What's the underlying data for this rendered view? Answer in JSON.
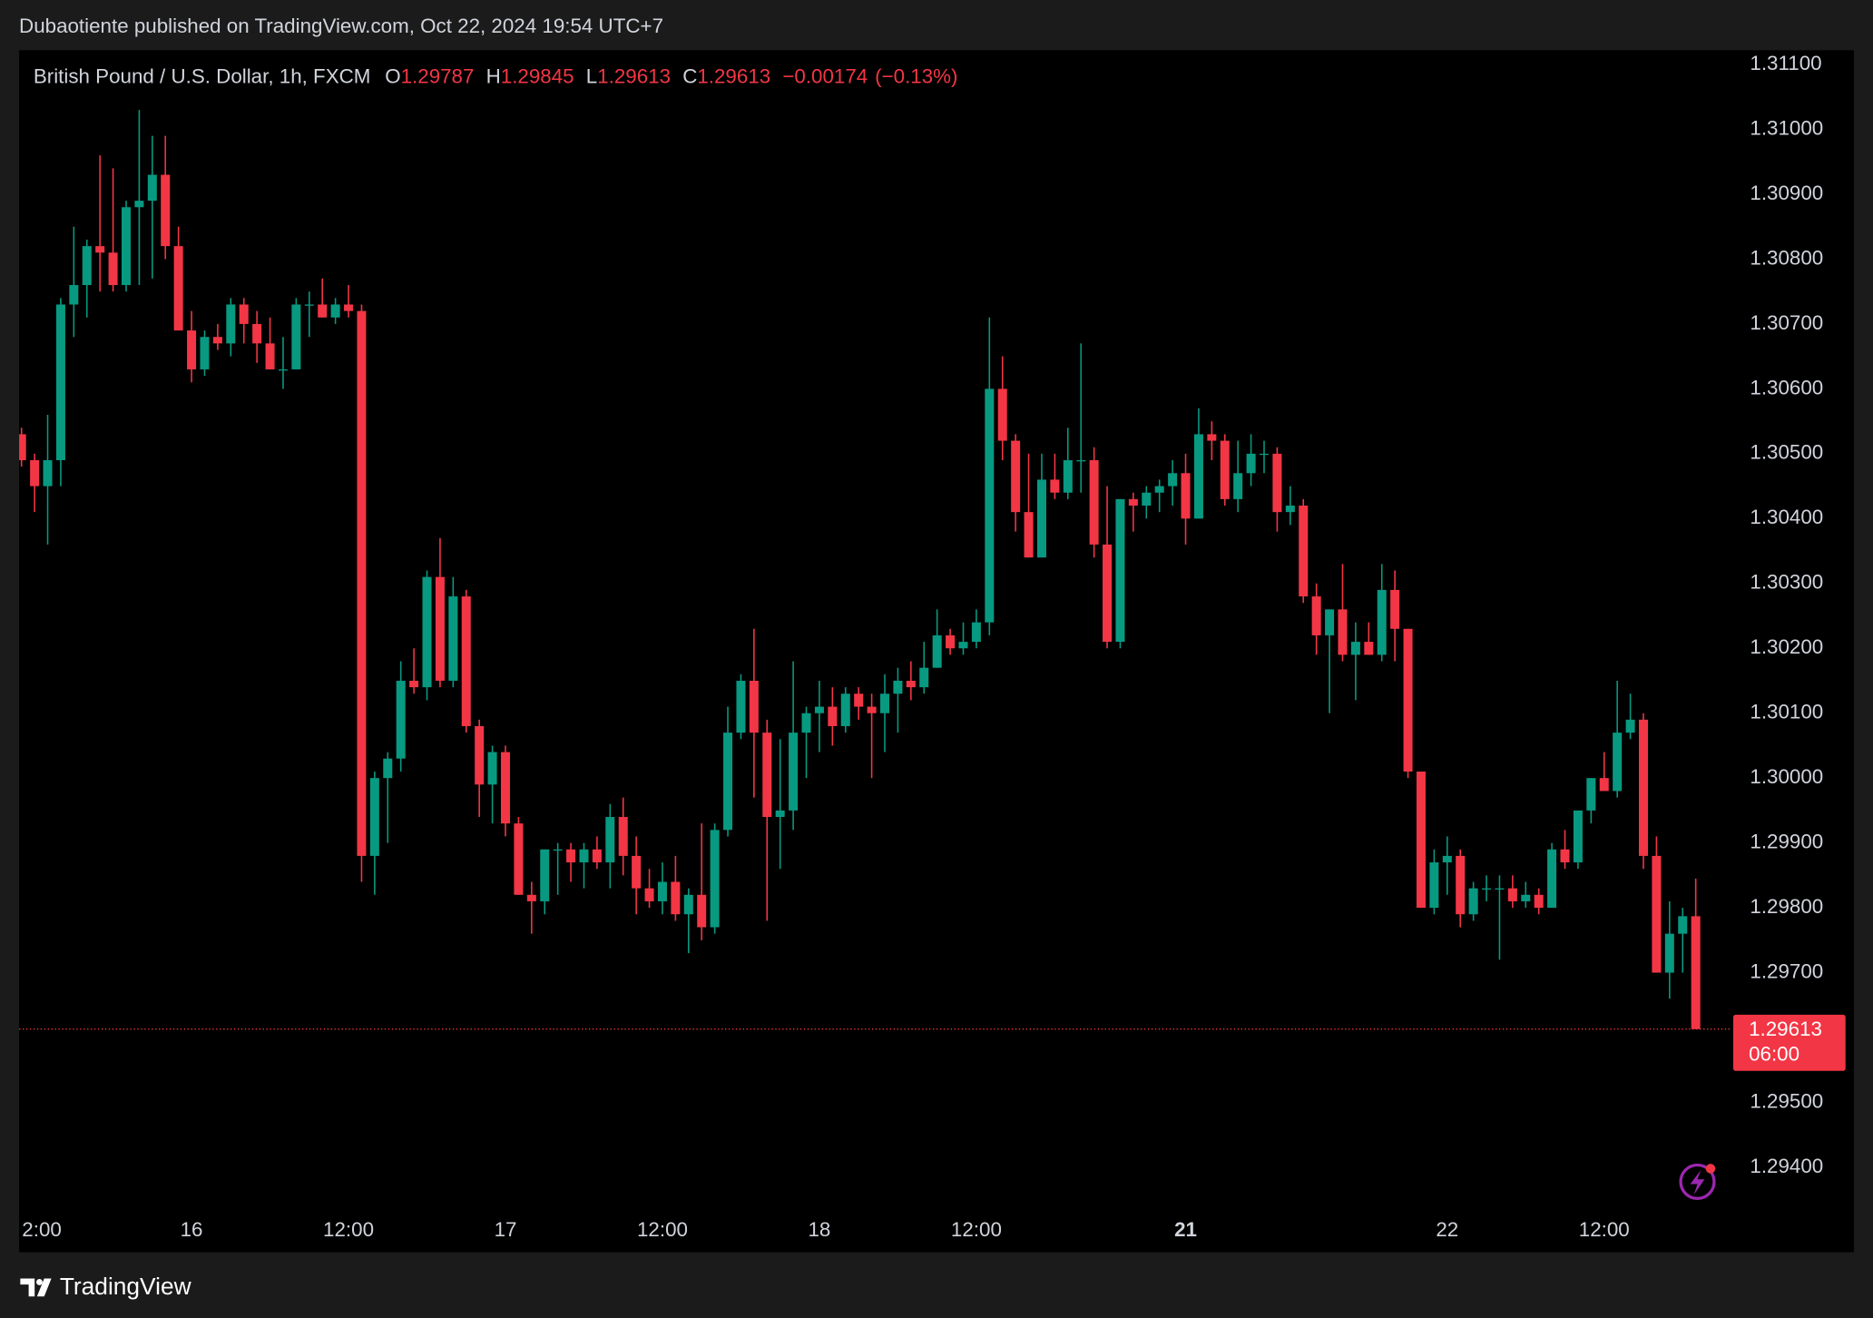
{
  "published": "Dubaotiente published on TradingView.com, Oct 22, 2024 19:54 UTC+7",
  "footer": {
    "brand": "TradingView"
  },
  "chart_data": {
    "type": "candlestick",
    "title": "British Pound / U.S. Dollar, 1h, FXCM",
    "ohlc_labels": [
      "O",
      "H",
      "L",
      "C"
    ],
    "change": {
      "value": -0.00174,
      "label": "−0.00174"
    },
    "change_percent": {
      "value": -0.13,
      "label": "(−0.13%)"
    },
    "countdown": "06:00",
    "up_color": "#089981",
    "down_color": "#f23645",
    "grid": false,
    "ylim": [
      1.29269,
      1.31122
    ],
    "yticks": [
      {
        "value": 1.311,
        "label": "1.31100"
      },
      {
        "value": 1.31,
        "label": "1.31000"
      },
      {
        "value": 1.309,
        "label": "1.30900"
      },
      {
        "value": 1.308,
        "label": "1.30800"
      },
      {
        "value": 1.307,
        "label": "1.30700"
      },
      {
        "value": 1.306,
        "label": "1.30600"
      },
      {
        "value": 1.305,
        "label": "1.30500"
      },
      {
        "value": 1.304,
        "label": "1.30400"
      },
      {
        "value": 1.303,
        "label": "1.30300"
      },
      {
        "value": 1.302,
        "label": "1.30200"
      },
      {
        "value": 1.301,
        "label": "1.30100"
      },
      {
        "value": 1.3,
        "label": "1.30000"
      },
      {
        "value": 1.299,
        "label": "1.29900"
      },
      {
        "value": 1.298,
        "label": "1.29800"
      },
      {
        "value": 1.297,
        "label": "1.29700"
      },
      {
        "value": 1.295,
        "label": "1.29500"
      },
      {
        "value": 1.294,
        "label": "1.29400"
      }
    ],
    "xticks": [
      {
        "value": 1,
        "label": "2:00"
      },
      {
        "value": 13,
        "label": "16"
      },
      {
        "value": 25,
        "label": "12:00"
      },
      {
        "value": 37,
        "label": "17"
      },
      {
        "value": 49,
        "label": "12:00"
      },
      {
        "value": 61,
        "label": "18"
      },
      {
        "value": 73,
        "label": "12:00"
      },
      {
        "value": 89,
        "label": "21",
        "bold": true
      },
      {
        "value": 109,
        "label": "22"
      },
      {
        "value": 121,
        "label": "12:00"
      }
    ],
    "open": [
      1.3053,
      1.3049,
      1.3045,
      1.3049,
      1.3073,
      1.3076,
      1.3082,
      1.3081,
      1.3076,
      1.3088,
      1.3089,
      1.3093,
      1.3082,
      1.3069,
      1.3063,
      1.3068,
      1.3067,
      1.3073,
      1.307,
      1.3067,
      1.3063,
      1.3063,
      1.3073,
      1.3073,
      1.3071,
      1.3073,
      1.3072,
      1.2988,
      1.3,
      1.3003,
      1.3015,
      1.3014,
      1.3031,
      1.3015,
      1.3028,
      1.3008,
      1.2999,
      1.3004,
      1.2993,
      1.2982,
      1.2981,
      1.2989,
      1.2989,
      1.2987,
      1.2989,
      1.2987,
      1.2994,
      1.2988,
      1.2983,
      1.2981,
      1.2984,
      1.2979,
      1.2982,
      1.2977,
      1.2992,
      1.3007,
      1.3015,
      1.3007,
      1.2994,
      1.2995,
      1.3007,
      1.301,
      1.3011,
      1.3008,
      1.3013,
      1.3011,
      1.301,
      1.3013,
      1.3015,
      1.3014,
      1.3017,
      1.3022,
      1.302,
      1.3021,
      1.3024,
      1.306,
      1.3052,
      1.3041,
      1.3034,
      1.3046,
      1.3044,
      1.3049,
      1.3049,
      1.3036,
      1.3021,
      1.3043,
      1.3042,
      1.3044,
      1.3045,
      1.3047,
      1.304,
      1.3053,
      1.3052,
      1.3043,
      1.3047,
      1.305,
      1.305,
      1.3041,
      1.3042,
      1.3028,
      1.3022,
      1.3026,
      1.3019,
      1.3021,
      1.3019,
      1.3029,
      1.3023,
      1.3001,
      1.298,
      1.2987,
      1.2988,
      1.2979,
      1.2983,
      1.2983,
      1.2983,
      1.2981,
      1.2982,
      1.298,
      1.2989,
      1.2987,
      1.2995,
      1.3,
      1.2998,
      1.3007,
      1.3009,
      1.2988,
      1.297,
      1.2976,
      1.29787
    ],
    "high": [
      1.3054,
      1.305,
      1.3056,
      1.3074,
      1.3085,
      1.3083,
      1.3096,
      1.3094,
      1.3089,
      1.3103,
      1.3099,
      1.3099,
      1.3085,
      1.3072,
      1.3069,
      1.307,
      1.3074,
      1.3074,
      1.3072,
      1.3071,
      1.3068,
      1.3074,
      1.3075,
      1.3077,
      1.3074,
      1.3076,
      1.3073,
      1.3001,
      1.3004,
      1.3018,
      1.302,
      1.3032,
      1.3037,
      1.3031,
      1.3029,
      1.3009,
      1.3005,
      1.3005,
      1.2994,
      1.2984,
      1.2989,
      1.299,
      1.299,
      1.299,
      1.2991,
      1.2996,
      1.2997,
      1.2991,
      1.2986,
      1.2987,
      1.2988,
      1.2983,
      1.2993,
      1.2993,
      1.3011,
      1.3016,
      1.3023,
      1.3009,
      1.3006,
      1.3018,
      1.3011,
      1.3015,
      1.3014,
      1.3014,
      1.3014,
      1.3013,
      1.3016,
      1.3017,
      1.3018,
      1.3021,
      1.3026,
      1.3023,
      1.3024,
      1.3026,
      1.3071,
      1.3065,
      1.3053,
      1.305,
      1.305,
      1.305,
      1.3054,
      1.3067,
      1.3051,
      1.3045,
      1.3043,
      1.3044,
      1.3045,
      1.3046,
      1.3049,
      1.305,
      1.3057,
      1.3055,
      1.3053,
      1.3052,
      1.3053,
      1.3052,
      1.3051,
      1.3045,
      1.3043,
      1.303,
      1.3026,
      1.3033,
      1.3024,
      1.3024,
      1.3033,
      1.3032,
      1.3023,
      1.3001,
      1.2989,
      1.2991,
      1.2989,
      1.2984,
      1.2985,
      1.2985,
      1.2985,
      1.2984,
      1.2983,
      1.299,
      1.2992,
      1.2995,
      1.3,
      1.3004,
      1.3015,
      1.3013,
      1.301,
      1.2991,
      1.2981,
      1.298,
      1.29845
    ],
    "low": [
      1.3048,
      1.3041,
      1.3036,
      1.3045,
      1.3068,
      1.3071,
      1.3075,
      1.3075,
      1.3075,
      1.3076,
      1.3077,
      1.308,
      1.3069,
      1.3061,
      1.3062,
      1.3066,
      1.3065,
      1.3067,
      1.3064,
      1.3063,
      1.306,
      1.3063,
      1.3068,
      1.3071,
      1.307,
      1.3071,
      1.2984,
      1.2982,
      1.299,
      1.3001,
      1.3013,
      1.3012,
      1.3014,
      1.3014,
      1.3007,
      1.2994,
      1.2993,
      1.2991,
      1.2982,
      1.2976,
      1.2979,
      1.2982,
      1.2984,
      1.2983,
      1.2986,
      1.2983,
      1.2985,
      1.2979,
      1.298,
      1.2979,
      1.2978,
      1.2973,
      1.2975,
      1.2976,
      1.2991,
      1.3006,
      1.2997,
      1.2978,
      1.2986,
      1.2992,
      1.3,
      1.3004,
      1.3005,
      1.3007,
      1.3009,
      1.3,
      1.3004,
      1.3007,
      1.3012,
      1.3013,
      1.3017,
      1.3019,
      1.3019,
      1.302,
      1.3022,
      1.3049,
      1.3038,
      1.3034,
      1.3034,
      1.3043,
      1.3043,
      1.3044,
      1.3034,
      1.302,
      1.302,
      1.3038,
      1.304,
      1.3041,
      1.3042,
      1.3036,
      1.304,
      1.3049,
      1.3042,
      1.3041,
      1.3045,
      1.3047,
      1.3038,
      1.3039,
      1.3027,
      1.3019,
      1.301,
      1.3018,
      1.3012,
      1.3019,
      1.3018,
      1.3018,
      1.3,
      1.298,
      1.2979,
      1.2982,
      1.2977,
      1.2978,
      1.2981,
      1.2972,
      1.298,
      1.298,
      1.2979,
      1.298,
      1.2986,
      1.2986,
      1.2993,
      1.2998,
      1.2997,
      1.3006,
      1.2986,
      1.297,
      1.2966,
      1.297,
      1.29613
    ],
    "close": [
      1.3049,
      1.3045,
      1.3049,
      1.3073,
      1.3076,
      1.3082,
      1.3081,
      1.3076,
      1.3088,
      1.3089,
      1.3093,
      1.3082,
      1.3069,
      1.3063,
      1.3068,
      1.3067,
      1.3073,
      1.307,
      1.3067,
      1.3063,
      1.3063,
      1.3073,
      1.3073,
      1.3071,
      1.3073,
      1.3072,
      1.2988,
      1.3,
      1.3003,
      1.3015,
      1.3014,
      1.3031,
      1.3015,
      1.3028,
      1.3008,
      1.2999,
      1.3004,
      1.2993,
      1.2982,
      1.2981,
      1.2989,
      1.2989,
      1.2987,
      1.2989,
      1.2987,
      1.2994,
      1.2988,
      1.2983,
      1.2981,
      1.2984,
      1.2979,
      1.2982,
      1.2977,
      1.2992,
      1.3007,
      1.3015,
      1.3007,
      1.2994,
      1.2995,
      1.3007,
      1.301,
      1.3011,
      1.3008,
      1.3013,
      1.3011,
      1.301,
      1.3013,
      1.3015,
      1.3014,
      1.3017,
      1.3022,
      1.302,
      1.3021,
      1.3024,
      1.306,
      1.3052,
      1.3041,
      1.3034,
      1.3046,
      1.3044,
      1.3049,
      1.3049,
      1.3036,
      1.3021,
      1.3043,
      1.3042,
      1.3044,
      1.3045,
      1.3047,
      1.304,
      1.3053,
      1.3052,
      1.3043,
      1.3047,
      1.305,
      1.305,
      1.3041,
      1.3042,
      1.3028,
      1.3022,
      1.3026,
      1.3019,
      1.3021,
      1.3019,
      1.3029,
      1.3023,
      1.3001,
      1.298,
      1.2987,
      1.2988,
      1.2979,
      1.2983,
      1.2983,
      1.2983,
      1.2981,
      1.2982,
      1.298,
      1.2989,
      1.2987,
      1.2995,
      1.3,
      1.2998,
      1.3007,
      1.3009,
      1.2988,
      1.297,
      1.2976,
      1.29787,
      1.29613
    ]
  }
}
